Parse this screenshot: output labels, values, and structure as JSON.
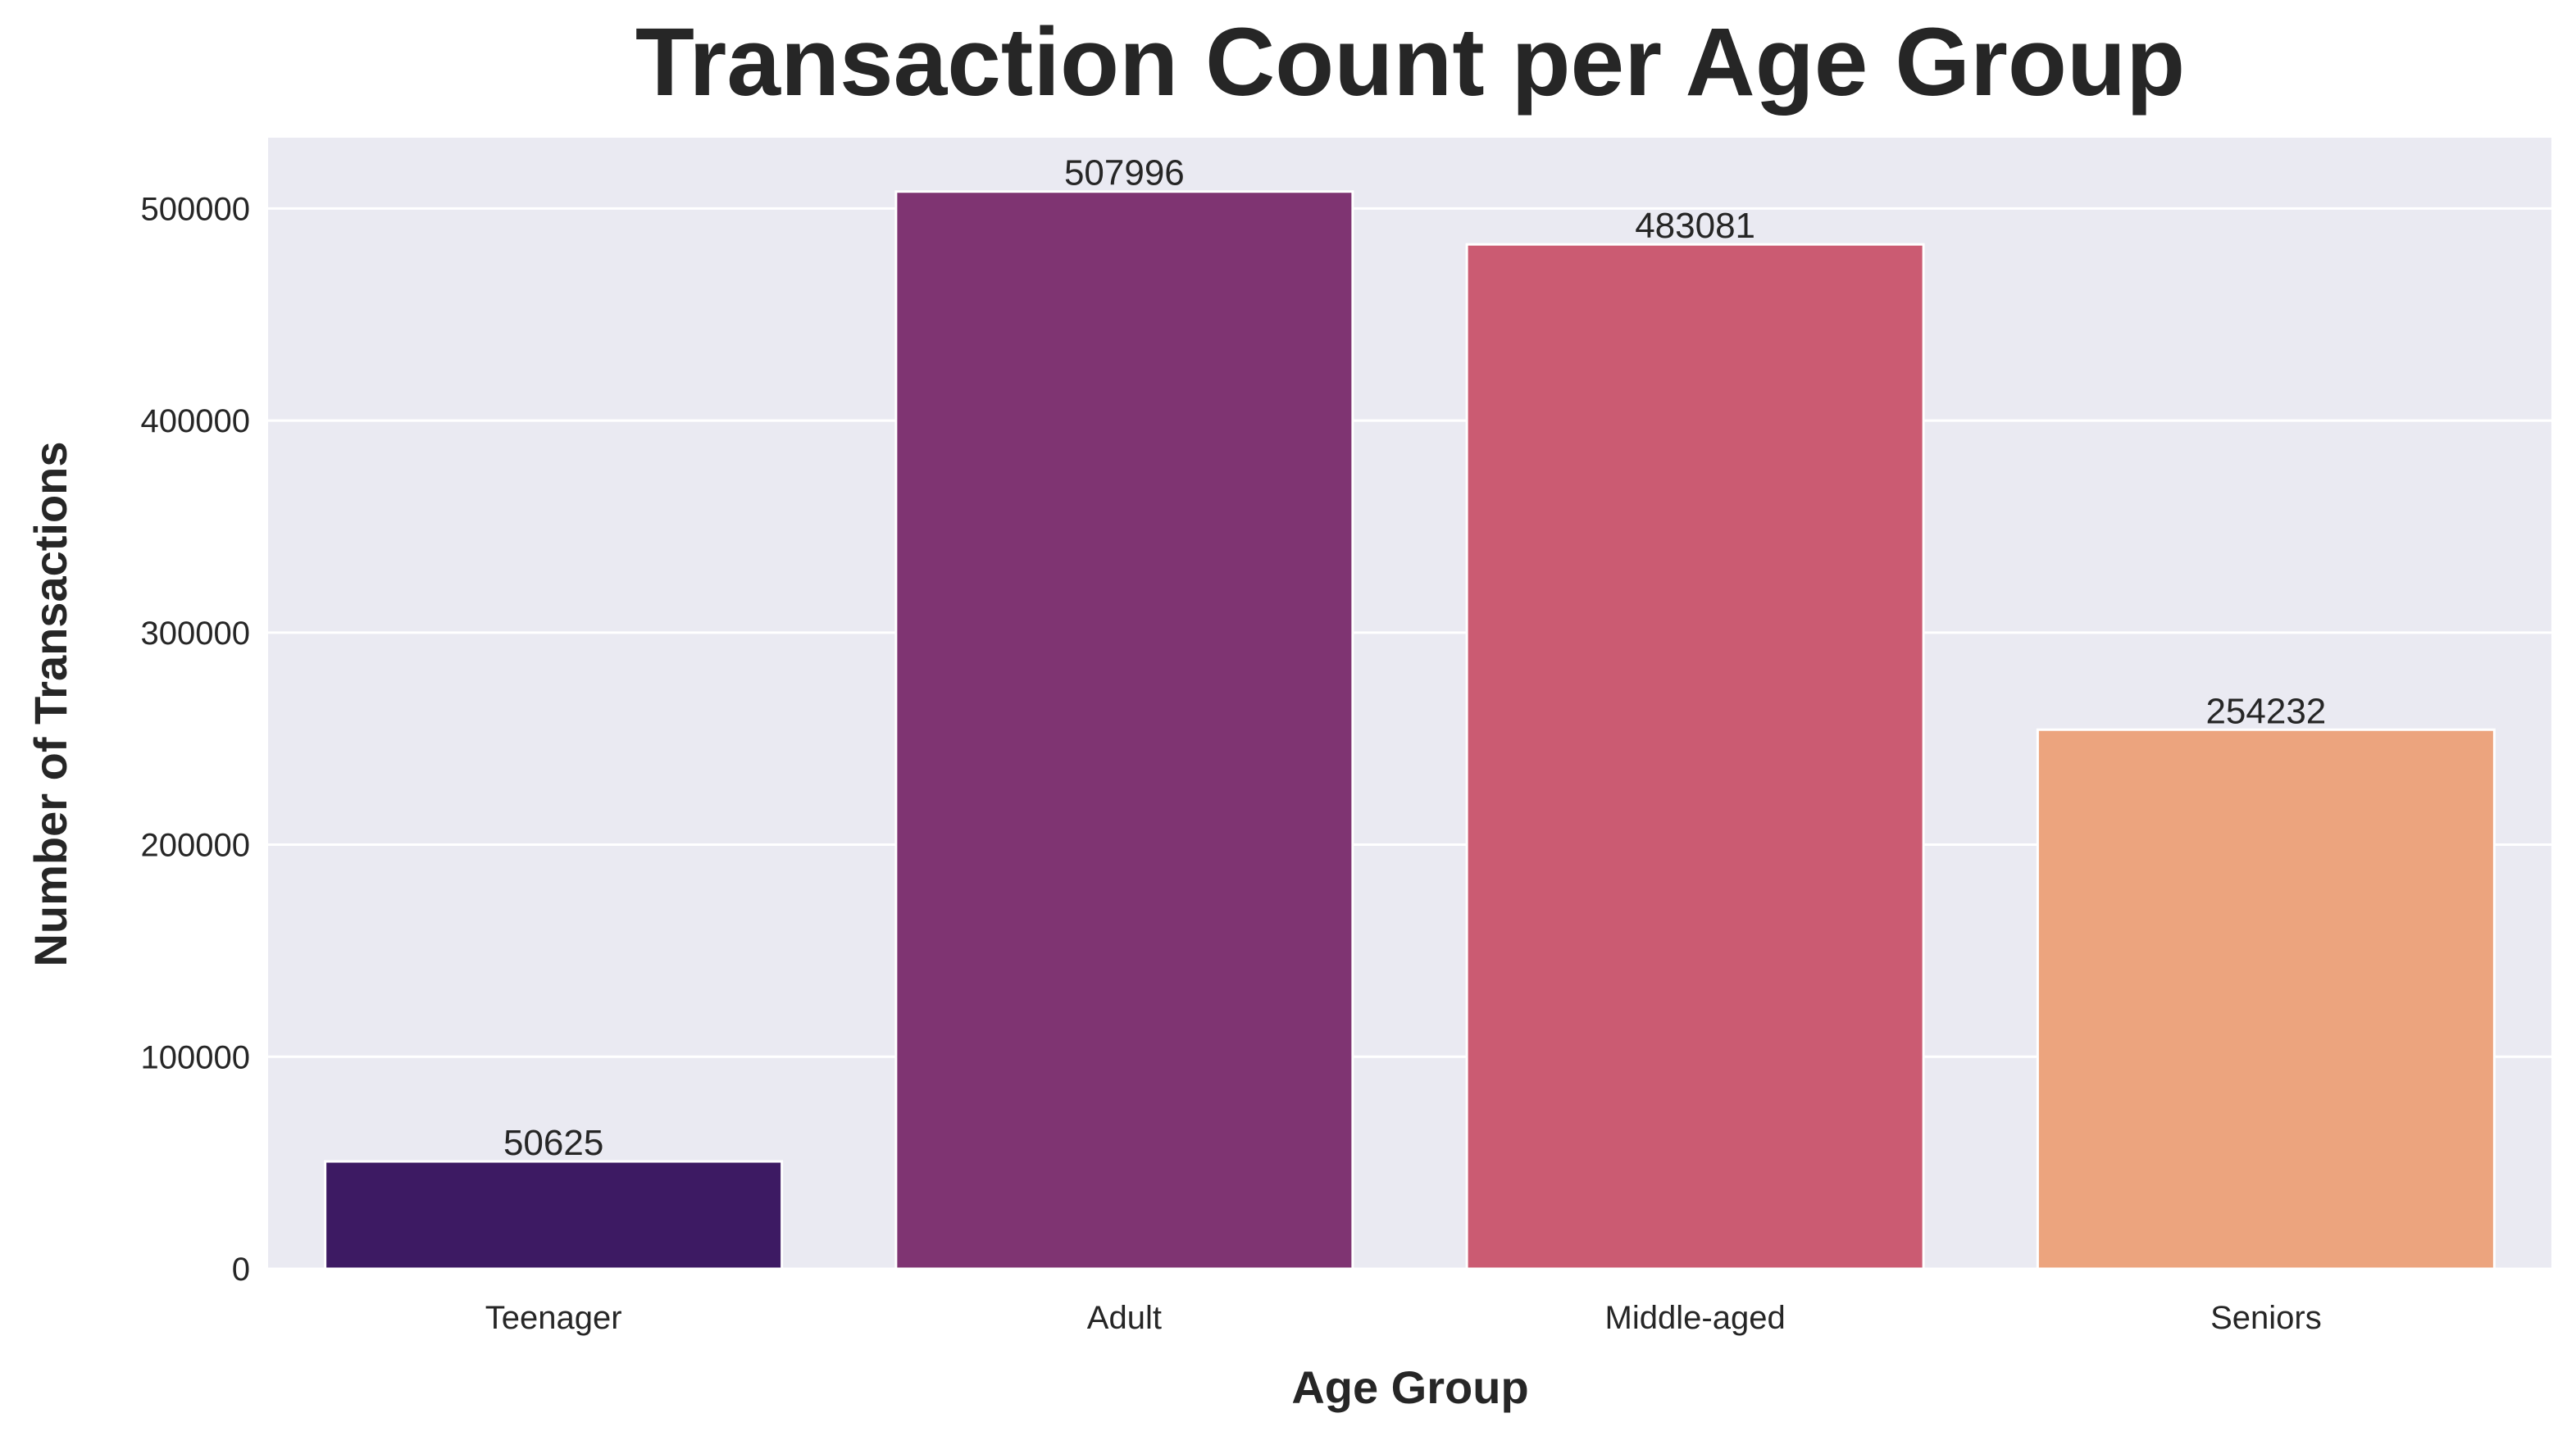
{
  "chart_data": {
    "type": "bar",
    "title": "Transaction Count per Age Group",
    "xlabel": "Age Group",
    "ylabel": "Number of Transactions",
    "categories": [
      "Teenager",
      "Adult",
      "Middle-aged",
      "Seniors"
    ],
    "values": [
      50625,
      507996,
      483081,
      254232
    ],
    "data_labels": [
      "50625",
      "507996",
      "483081",
      "254232"
    ],
    "y_ticks": [
      0,
      100000,
      200000,
      300000,
      400000,
      500000
    ],
    "y_tick_labels": [
      "0",
      "100000",
      "200000",
      "300000",
      "400000",
      "500000"
    ],
    "ylim": [
      0,
      533396
    ],
    "grid": true,
    "legend": "none",
    "colors": [
      "#3d1a63",
      "#7f3472",
      "#cb5b72",
      "#eca47e"
    ],
    "background_color": "#eaeaf2",
    "gridline_color": "#ffffff"
  }
}
